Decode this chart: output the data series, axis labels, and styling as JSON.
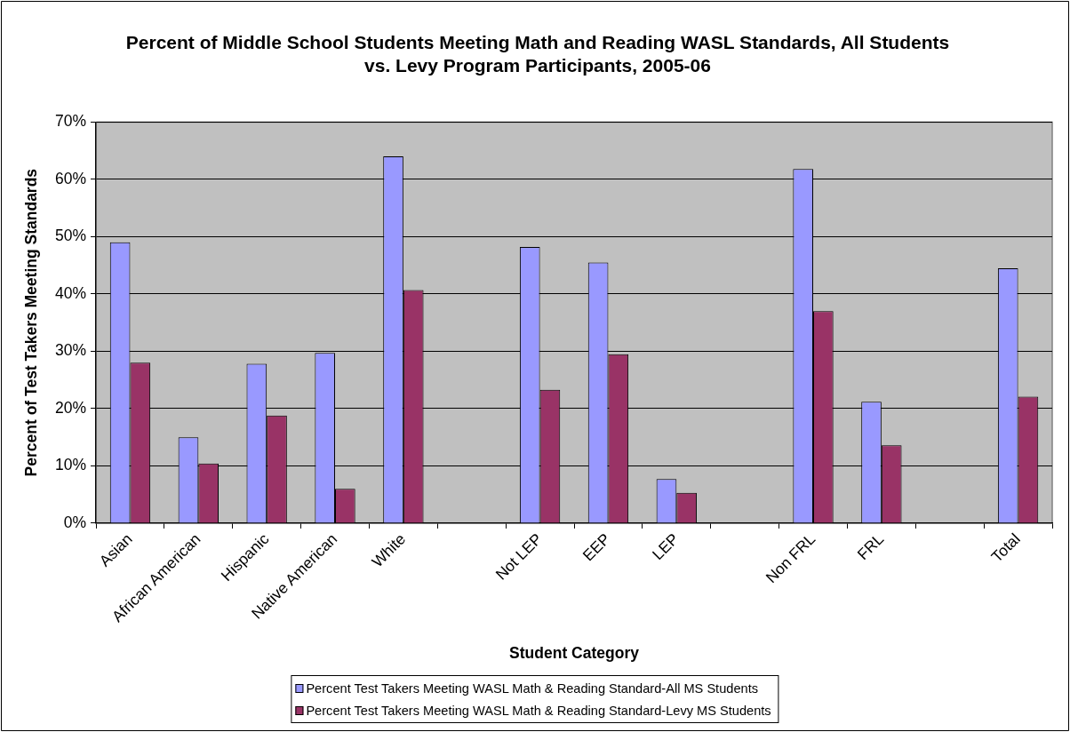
{
  "chart_data": {
    "type": "bar",
    "title": "Percent of Middle School Students Meeting Math and Reading WASL Standards, All Students vs. Levy Program Participants, 2005-06",
    "xlabel": "Student Category",
    "ylabel": "Percent of Test Takers Meeting Standards",
    "categories": [
      "Asian",
      "African American",
      "Hispanic",
      "Native American",
      "White",
      null,
      "Not LEP",
      "EEP",
      "LEP",
      null,
      "Non FRL",
      "FRL",
      null,
      "Total"
    ],
    "series": [
      {
        "name": "Percent Test Takers Meeting WASL Math & Reading Standard-All MS Students",
        "color": "#9999ff",
        "values": [
          49,
          15,
          27.8,
          29.7,
          64,
          null,
          48.2,
          45.5,
          7.7,
          null,
          61.8,
          21.2,
          null,
          44.5
        ]
      },
      {
        "name": "Percent Test Takers Meeting WASL Math & Reading Standard-Levy MS Students",
        "color": "#993366",
        "values": [
          28,
          10.4,
          18.8,
          6,
          40.7,
          null,
          23.3,
          29.5,
          5.3,
          null,
          37,
          13.6,
          null,
          22.1
        ]
      }
    ],
    "ylim": [
      0,
      70
    ],
    "yticks": [
      {
        "value": 0,
        "label": "0%"
      },
      {
        "value": 10,
        "label": "10%"
      },
      {
        "value": 20,
        "label": "20%"
      },
      {
        "value": 30,
        "label": "30%"
      },
      {
        "value": 40,
        "label": "40%"
      },
      {
        "value": 50,
        "label": "50%"
      },
      {
        "value": 60,
        "label": "60%"
      },
      {
        "value": 70,
        "label": "70%"
      }
    ],
    "grid": "y",
    "legend": "bottom"
  }
}
